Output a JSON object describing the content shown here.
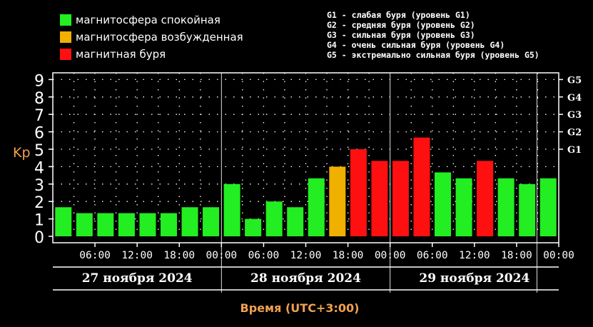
{
  "legend": [
    {
      "label": "магнитосфера спокойная",
      "color": "#22ee22"
    },
    {
      "label": "магнитосфера возбужденная",
      "color": "#f0b000"
    },
    {
      "label": "магнитная буря",
      "color": "#ff1010"
    }
  ],
  "g_scale": [
    "G1 - слабая буря (уровень G1)",
    "G2 - средняя буря (уровень G2)",
    "G3 - сильная буря (уровень G3)",
    "G4 - очень сильная буря (уровень G4)",
    "G5 - экстремально сильная буря (уровень G5)"
  ],
  "chart_data": {
    "type": "bar",
    "ylabel": "Kp",
    "xlabel": "Время (UTC+3:00)",
    "ylim": [
      0,
      9
    ],
    "y_ticks": [
      "0",
      "1",
      "2",
      "3",
      "4",
      "5",
      "6",
      "7",
      "8",
      "9"
    ],
    "right_ticks": [
      {
        "label": "G1",
        "kp": 5
      },
      {
        "label": "G2",
        "kp": 6
      },
      {
        "label": "G3",
        "kp": 7
      },
      {
        "label": "G4",
        "kp": 8
      },
      {
        "label": "G5",
        "kp": 9
      }
    ],
    "time_ticks": [
      "06:00",
      "12:00",
      "18:00",
      "00:00",
      "06:00",
      "12:00",
      "18:00",
      "00:00",
      "06:00",
      "12:00",
      "18:00",
      "00:00"
    ],
    "days": [
      "27 ноября 2024",
      "28 ноября 2024",
      "29 ноября 2024"
    ],
    "values": [
      1.67,
      1.33,
      1.33,
      1.33,
      1.33,
      1.33,
      1.67,
      1.67,
      3.0,
      1.0,
      2.0,
      1.67,
      3.33,
      4.0,
      5.0,
      4.33,
      4.33,
      5.67,
      3.67,
      3.33,
      4.33,
      3.33,
      3.0,
      3.33
    ],
    "colors": [
      "#22ee22",
      "#22ee22",
      "#22ee22",
      "#22ee22",
      "#22ee22",
      "#22ee22",
      "#22ee22",
      "#22ee22",
      "#22ee22",
      "#22ee22",
      "#22ee22",
      "#22ee22",
      "#22ee22",
      "#f0b000",
      "#ff1010",
      "#ff1010",
      "#ff1010",
      "#ff1010",
      "#22ee22",
      "#22ee22",
      "#ff1010",
      "#22ee22",
      "#22ee22",
      "#22ee22"
    ]
  }
}
